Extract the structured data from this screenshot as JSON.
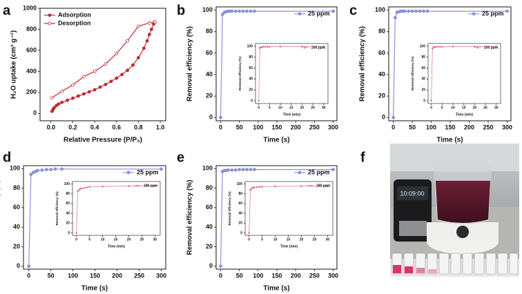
{
  "panels": [
    "a",
    "b",
    "c",
    "d",
    "e",
    "f"
  ],
  "chart_data": [
    {
      "type": "line",
      "xlabel": "Relative Pressure (P/P₀)",
      "ylabel": "H₂O uptake (cm³ g⁻¹)",
      "xlim": [
        -0.1,
        1.05
      ],
      "xticks": [
        {
          "value": 0,
          "label": "0.0"
        },
        0.2,
        0.4,
        0.6,
        0.8,
        {
          "value": 1,
          "label": "1.0"
        }
      ],
      "ylim": [
        -70,
        1000
      ],
      "yticks": [
        0,
        200,
        400,
        600,
        800,
        1000
      ],
      "legend": "upper left",
      "series": [
        {
          "name": "Adsorption",
          "color": "#c0282d",
          "marker": "filled",
          "x": [
            0.01,
            0.02,
            0.03,
            0.05,
            0.07,
            0.1,
            0.15,
            0.2,
            0.25,
            0.3,
            0.35,
            0.4,
            0.45,
            0.5,
            0.55,
            0.6,
            0.65,
            0.7,
            0.75,
            0.8,
            0.85,
            0.88,
            0.9,
            0.92,
            0.94,
            0.95
          ],
          "values": [
            20,
            40,
            55,
            75,
            90,
            105,
            125,
            145,
            165,
            185,
            205,
            225,
            250,
            275,
            305,
            335,
            370,
            410,
            460,
            530,
            620,
            690,
            750,
            800,
            850,
            870
          ]
        },
        {
          "name": "Desorption",
          "color": "#c0282d",
          "marker": "open",
          "x": [
            0.95,
            0.9,
            0.8,
            0.7,
            0.6,
            0.5,
            0.4,
            0.3,
            0.2,
            0.1,
            0.01
          ],
          "values": [
            870,
            860,
            830,
            690,
            570,
            470,
            400,
            350,
            270,
            210,
            150
          ]
        }
      ]
    },
    {
      "type": "line",
      "xlabel": "Time (s)",
      "ylabel": "Removal efficiency (%)",
      "xlim": [
        -12,
        310
      ],
      "xticks": [
        0,
        50,
        100,
        150,
        200,
        250,
        300
      ],
      "ylim": [
        -3,
        103
      ],
      "yticks": [
        0,
        20,
        40,
        60,
        80,
        100
      ],
      "legend": "upper right",
      "series": [
        {
          "name": "25 ppm",
          "color": "#8a90dc",
          "x": [
            0,
            5,
            10,
            15,
            20,
            25,
            30,
            40,
            50,
            60,
            70,
            80,
            90,
            300
          ],
          "values": [
            0,
            96,
            98,
            98.5,
            99,
            99,
            99,
            99,
            99,
            99,
            99,
            99,
            99,
            99
          ]
        }
      ],
      "inset": {
        "xlabel": "Time (min)",
        "ylabel": "Removal efficiency (%)",
        "xlim": [
          -1.5,
          32
        ],
        "xticks": [
          0,
          5,
          10,
          15,
          20,
          25,
          30
        ],
        "ylim": [
          -5,
          105
        ],
        "yticks": [
          0,
          20,
          40,
          60,
          80,
          100
        ],
        "legend": "upper right",
        "series": [
          {
            "name": "200 ppm",
            "color": "#e0708a",
            "x": [
              0,
              0.5,
              1,
              1.5,
              2,
              3,
              4,
              5,
              10,
              20,
              30
            ],
            "values": [
              0,
              97,
              98,
              98.5,
              99,
              99,
              99,
              99,
              99.5,
              99.5,
              99.5
            ]
          }
        ]
      }
    },
    {
      "type": "line",
      "xlabel": "Time (s)",
      "ylabel": "Removal efficiency (%)",
      "xlim": [
        -12,
        310
      ],
      "xticks": [
        0,
        50,
        100,
        150,
        200,
        250,
        300
      ],
      "ylim": [
        -3,
        103
      ],
      "yticks": [
        0,
        20,
        40,
        60,
        80,
        100
      ],
      "legend": "upper right",
      "series": [
        {
          "name": "25 ppm",
          "color": "#8a90dc",
          "x": [
            0,
            5,
            10,
            15,
            20,
            25,
            30,
            40,
            50,
            60,
            70,
            80,
            90,
            300
          ],
          "values": [
            0,
            93,
            98,
            98.5,
            99,
            99,
            99,
            99,
            99,
            99,
            99,
            99,
            99,
            99
          ]
        }
      ],
      "inset": {
        "xlabel": "Time (min)",
        "ylabel": "Removal efficiency (%)",
        "xlim": [
          -1.5,
          32
        ],
        "xticks": [
          0,
          5,
          10,
          15,
          20,
          25,
          30
        ],
        "ylim": [
          -5,
          105
        ],
        "yticks": [
          0,
          20,
          40,
          60,
          80,
          100
        ],
        "legend": "upper right",
        "series": [
          {
            "name": "200 ppm",
            "color": "#e0708a",
            "x": [
              0,
              0.5,
              1,
              1.5,
              2,
              3,
              4,
              5,
              10,
              20,
              30
            ],
            "values": [
              0,
              96,
              98,
              98.5,
              99,
              99,
              99,
              99,
              99.5,
              99.5,
              99.5
            ]
          }
        ]
      }
    },
    {
      "type": "line",
      "xlabel": "Time (s)",
      "ylabel": "Removal efficiency (%)",
      "xlim": [
        -12,
        310
      ],
      "xticks": [
        0,
        50,
        100,
        150,
        200,
        250,
        300
      ],
      "ylim": [
        -3,
        103
      ],
      "yticks": [
        0,
        20,
        40,
        60,
        80,
        100
      ],
      "legend": "upper right",
      "series": [
        {
          "name": "25 ppm",
          "color": "#8a90dc",
          "x": [
            0,
            5,
            10,
            15,
            20,
            30,
            40,
            50,
            60,
            75,
            300
          ],
          "values": [
            0,
            94,
            96,
            97,
            98,
            98.5,
            99,
            99,
            99.5,
            99.5,
            99.5
          ]
        }
      ],
      "inset": {
        "xlabel": "Time (min)",
        "ylabel": "Removal efficiency (%)",
        "xlim": [
          -1.5,
          32
        ],
        "xticks": [
          0,
          5,
          10,
          15,
          20,
          25,
          30
        ],
        "ylim": [
          -5,
          105
        ],
        "yticks": [
          0,
          20,
          40,
          60,
          80,
          100
        ],
        "legend": "upper right",
        "series": [
          {
            "name": "180 ppm",
            "color": "#e0708a",
            "x": [
              0,
              0.5,
              1,
              1.5,
              2,
              3,
              4,
              5,
              10,
              20,
              30
            ],
            "values": [
              0,
              85,
              88,
              90,
              91,
              92,
              93,
              94,
              95,
              95.5,
              96
            ]
          }
        ]
      }
    },
    {
      "type": "line",
      "xlabel": "Time (s)",
      "ylabel": "Removal efficiency (%)",
      "xlim": [
        -12,
        310
      ],
      "xticks": [
        0,
        50,
        100,
        150,
        200,
        250,
        300
      ],
      "ylim": [
        -3,
        103
      ],
      "yticks": [
        0,
        20,
        40,
        60,
        80,
        100
      ],
      "legend": "upper right",
      "series": [
        {
          "name": "25 ppm",
          "color": "#8a90dc",
          "x": [
            0,
            5,
            10,
            15,
            20,
            30,
            40,
            50,
            60,
            70,
            80,
            90,
            300
          ],
          "values": [
            0,
            97,
            98,
            98,
            98.5,
            98.5,
            98.5,
            99,
            99,
            99,
            99,
            99,
            99
          ]
        }
      ],
      "inset": {
        "xlabel": "Time (min)",
        "ylabel": "Removal efficiency (%)",
        "xlim": [
          -1.5,
          32
        ],
        "xticks": [
          0,
          5,
          10,
          15,
          20,
          25,
          30
        ],
        "ylim": [
          -5,
          105
        ],
        "yticks": [
          0,
          20,
          40,
          60,
          80,
          100
        ],
        "legend": "upper right",
        "series": [
          {
            "name": "180 ppm",
            "color": "#e0708a",
            "x": [
              0,
              0.5,
              1,
              1.5,
              2,
              3,
              4,
              5,
              10,
              20,
              30
            ],
            "values": [
              0,
              88,
              91,
              92,
              93,
              93.5,
              94,
              94.5,
              95,
              95.5,
              95.5
            ]
          }
        ]
      }
    }
  ]
}
